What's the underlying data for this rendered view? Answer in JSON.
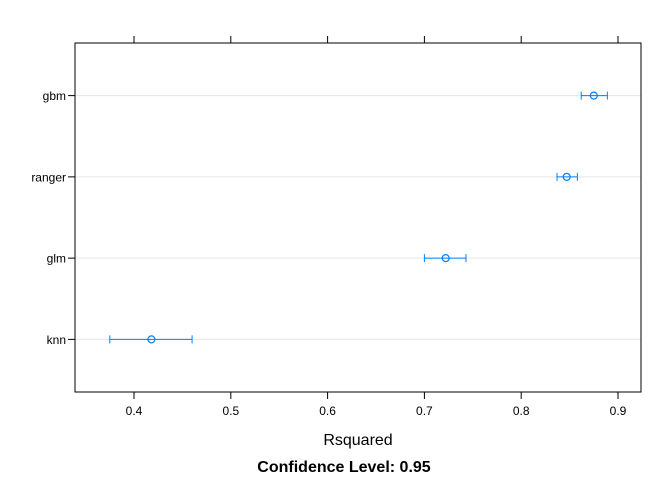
{
  "chart_data": {
    "type": "scatter",
    "subtype": "dotplot-with-confidence-intervals",
    "categories": [
      "gbm",
      "ranger",
      "glm",
      "knn"
    ],
    "series": [
      {
        "points": [
          {
            "label": "gbm",
            "value": 0.875,
            "lower": 0.862,
            "upper": 0.889
          },
          {
            "label": "ranger",
            "value": 0.847,
            "lower": 0.837,
            "upper": 0.858
          },
          {
            "label": "glm",
            "value": 0.722,
            "lower": 0.7,
            "upper": 0.743
          },
          {
            "label": "knn",
            "value": 0.418,
            "lower": 0.375,
            "upper": 0.46
          }
        ]
      }
    ],
    "xlabel": "Rsquared",
    "ylabel": "",
    "xlim": [
      0.34,
      0.93
    ],
    "xticks": [
      0.4,
      0.5,
      0.6,
      0.7,
      0.8,
      0.9
    ],
    "xtick_labels": [
      "0.4",
      "0.5",
      "0.6",
      "0.7",
      "0.8",
      "0.9"
    ],
    "grid": true,
    "footer": "Confidence Level: 0.95"
  },
  "colors": {
    "point": "#0080ff",
    "gridline": "#e6e6e6",
    "axis": "#000000",
    "text": "#000000"
  }
}
